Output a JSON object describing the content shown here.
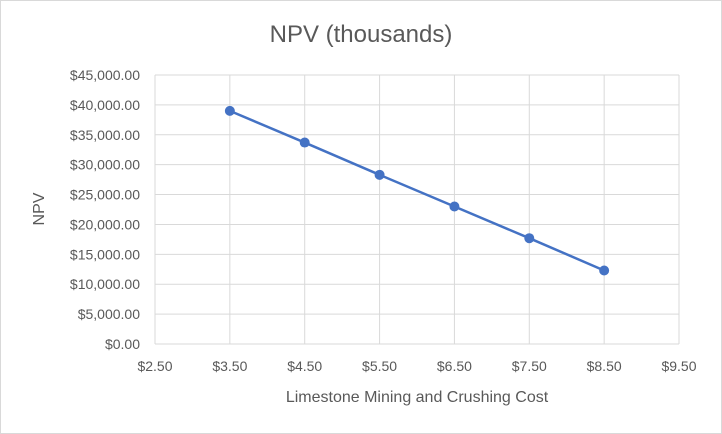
{
  "chart_data": {
    "type": "scatter",
    "title": "NPV (thousands)",
    "xlabel": "Limestone Mining and Crushing Cost",
    "ylabel": "NPV",
    "xlim": [
      2.5,
      9.5
    ],
    "ylim": [
      0,
      45000
    ],
    "x_ticks": [
      2.5,
      3.5,
      4.5,
      5.5,
      6.5,
      7.5,
      8.5,
      9.5
    ],
    "x_tick_labels": [
      "$2.50",
      "$3.50",
      "$4.50",
      "$5.50",
      "$6.50",
      "$7.50",
      "$8.50",
      "$9.50"
    ],
    "y_ticks": [
      0,
      5000,
      10000,
      15000,
      20000,
      25000,
      30000,
      35000,
      40000,
      45000
    ],
    "y_tick_labels": [
      "$0.00",
      "$5,000.00",
      "$10,000.00",
      "$15,000.00",
      "$20,000.00",
      "$25,000.00",
      "$30,000.00",
      "$35,000.00",
      "$40,000.00",
      "$45,000.00"
    ],
    "grid": true,
    "series": [
      {
        "name": "NPV",
        "color": "#4472c4",
        "lines": true,
        "markers": true,
        "x": [
          3.5,
          4.5,
          5.5,
          6.5,
          7.5,
          8.5
        ],
        "y": [
          39000,
          33700,
          28300,
          23000,
          17700,
          12300
        ]
      }
    ]
  }
}
